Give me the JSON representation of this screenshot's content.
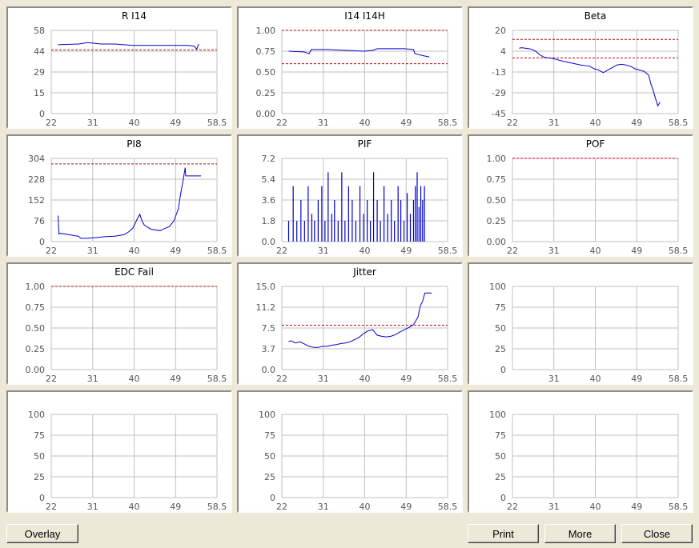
{
  "buttons": {
    "overlay": "Overlay",
    "print": "Print",
    "more": "More",
    "close": "Close"
  },
  "colors": {
    "data": "#0000cc",
    "limit": "#b01010",
    "grid": "#c0c0c0"
  },
  "chart_data": [
    {
      "type": "line",
      "title": "R I14",
      "x_ticks": [
        "22",
        "31",
        "40",
        "49",
        "58.5"
      ],
      "xlim": [
        22,
        58.5
      ],
      "y_ticks": [
        "58",
        "44",
        "29",
        "15",
        "0"
      ],
      "ylim": [
        0,
        58
      ],
      "limits": [
        44.5
      ],
      "series": [
        {
          "x": [
            23.5,
            28,
            30,
            33,
            36,
            40,
            44,
            48,
            52,
            53.5,
            54,
            54.5
          ],
          "y": [
            48,
            48.5,
            49.5,
            48.5,
            48.5,
            47.5,
            47.5,
            47.5,
            47.5,
            47,
            45,
            48.5
          ]
        }
      ]
    },
    {
      "type": "line",
      "title": "I14 I14H",
      "x_ticks": [
        "22",
        "31",
        "40",
        "49",
        "58.5"
      ],
      "xlim": [
        22,
        58.5
      ],
      "y_ticks": [
        "1.00",
        "0.75",
        "0.50",
        "0.25",
        "0.00"
      ],
      "ylim": [
        0,
        1
      ],
      "limits": [
        1.0,
        0.6
      ],
      "series": [
        {
          "x": [
            23.5,
            27,
            28,
            28.5,
            32,
            36,
            40,
            42,
            43,
            46,
            49,
            51,
            51.3,
            52,
            54.5
          ],
          "y": [
            0.75,
            0.74,
            0.72,
            0.77,
            0.77,
            0.76,
            0.75,
            0.76,
            0.78,
            0.78,
            0.78,
            0.77,
            0.72,
            0.71,
            0.68
          ]
        }
      ]
    },
    {
      "type": "line",
      "title": "Beta",
      "x_ticks": [
        "22",
        "31",
        "40",
        "49",
        "58.5"
      ],
      "xlim": [
        22,
        58.5
      ],
      "y_ticks": [
        "20",
        "4",
        "-13",
        "-29",
        "-45"
      ],
      "ylim": [
        -45,
        20
      ],
      "limits": [
        13,
        -1.5
      ],
      "series": [
        {
          "x": [
            23.5,
            24,
            25,
            26,
            27,
            28,
            29,
            31,
            33,
            35,
            37,
            39,
            40,
            41,
            42,
            43,
            44,
            45,
            46,
            47,
            48,
            49,
            50,
            51,
            52,
            52.5,
            53,
            53.5,
            54,
            54.5
          ],
          "y": [
            6,
            6.5,
            6,
            5.5,
            4,
            1,
            -1,
            -2,
            -4,
            -5.5,
            -7,
            -8,
            -10,
            -11,
            -13,
            -11,
            -9,
            -7,
            -6.5,
            -7,
            -8,
            -10,
            -11,
            -12,
            -15,
            -22,
            -27,
            -33,
            -39,
            -36
          ]
        }
      ]
    },
    {
      "type": "line",
      "title": "PI8",
      "x_ticks": [
        "22",
        "31",
        "40",
        "49",
        "58.5"
      ],
      "xlim": [
        22,
        58.5
      ],
      "y_ticks": [
        "304",
        "228",
        "152",
        "76",
        "0"
      ],
      "ylim": [
        0,
        304
      ],
      "limits": [
        284
      ],
      "series": [
        {
          "x": [
            23.5,
            23.7,
            24,
            26,
            27,
            28,
            28.5,
            30,
            32,
            34,
            36,
            38,
            39,
            40,
            41,
            41.5,
            42,
            42.5,
            44,
            46,
            47,
            48,
            49,
            50,
            50.5,
            51,
            51.5,
            51.6,
            52,
            55
          ],
          "y": [
            95,
            28,
            30,
            25,
            22,
            20,
            12,
            12,
            15,
            18,
            20,
            25,
            35,
            50,
            85,
            100,
            75,
            60,
            45,
            40,
            48,
            55,
            75,
            120,
            175,
            220,
            270,
            240,
            240,
            240
          ]
        }
      ]
    },
    {
      "type": "bar",
      "title": "PIF",
      "x_ticks": [
        "22",
        "31",
        "40",
        "49",
        "58.5"
      ],
      "xlim": [
        22,
        58.5
      ],
      "y_ticks": [
        "7.2",
        "5.4",
        "3.6",
        "1.8",
        "0.0"
      ],
      "ylim": [
        0,
        7.2
      ],
      "limits": [],
      "series": [
        {
          "x": [
            23.5,
            24.5,
            25.3,
            26.2,
            27,
            27.8,
            28.6,
            29.2,
            30,
            30.8,
            31.5,
            32.2,
            33,
            33.6,
            34.4,
            35.2,
            35.9,
            36.7,
            37.5,
            38.3,
            39.2,
            40,
            40.8,
            41.5,
            42.2,
            43,
            43.7,
            44.5,
            45.3,
            46.1,
            46.8,
            47.6,
            48.2,
            48.9,
            49.6,
            50.3,
            51,
            51.4,
            51.8,
            52.2,
            52.6,
            53,
            53.4
          ],
          "y": [
            1.8,
            4.8,
            1.8,
            3.6,
            1.8,
            4.8,
            2.4,
            1.8,
            3.6,
            4.8,
            1.8,
            6.0,
            2.4,
            3.6,
            1.8,
            6.0,
            1.8,
            4.8,
            3.6,
            1.8,
            4.8,
            2.4,
            3.6,
            1.8,
            6.0,
            3.6,
            1.8,
            4.8,
            2.4,
            3.6,
            1.8,
            4.8,
            3.6,
            1.8,
            4.2,
            2.4,
            3.6,
            4.8,
            6.0,
            3.0,
            4.8,
            3.6,
            4.8
          ]
        }
      ]
    },
    {
      "type": "line",
      "title": "POF",
      "x_ticks": [
        "22",
        "31",
        "40",
        "49",
        "58.5"
      ],
      "xlim": [
        22,
        58.5
      ],
      "y_ticks": [
        "1.00",
        "0.75",
        "0.50",
        "0.25",
        "0.00"
      ],
      "ylim": [
        0,
        1
      ],
      "limits": [
        1.0
      ],
      "series": []
    },
    {
      "type": "line",
      "title": "EDC Fail",
      "x_ticks": [
        "22",
        "31",
        "40",
        "49",
        "58.5"
      ],
      "xlim": [
        22,
        58.5
      ],
      "y_ticks": [
        "1.00",
        "0.75",
        "0.50",
        "0.25",
        "0.00"
      ],
      "ylim": [
        0,
        1
      ],
      "limits": [
        1.0
      ],
      "series": []
    },
    {
      "type": "line",
      "title": "Jitter",
      "x_ticks": [
        "22",
        "31",
        "40",
        "49",
        "58.5"
      ],
      "xlim": [
        22,
        58.5
      ],
      "y_ticks": [
        "15.0",
        "11.2",
        "7.5",
        "3.7",
        "0.0"
      ],
      "ylim": [
        0,
        15
      ],
      "limits": [
        8.0
      ],
      "series": [
        {
          "x": [
            23.5,
            24,
            25,
            26,
            27,
            28,
            29,
            30,
            31,
            32,
            33,
            34,
            35,
            36,
            37,
            38,
            39,
            40,
            41,
            42,
            43,
            44,
            45,
            46,
            47,
            48,
            49,
            50,
            51,
            52,
            52.5,
            53,
            53.5,
            54,
            55
          ],
          "y": [
            5.0,
            5.2,
            4.8,
            5.0,
            4.6,
            4.2,
            4.0,
            4.0,
            4.2,
            4.2,
            4.4,
            4.5,
            4.7,
            4.8,
            5.0,
            5.4,
            5.8,
            6.5,
            7.0,
            7.2,
            6.2,
            6.0,
            5.9,
            6.0,
            6.3,
            6.8,
            7.2,
            7.6,
            8.1,
            9.5,
            11.5,
            12.3,
            13.8,
            13.8,
            13.8
          ]
        }
      ]
    },
    {
      "type": "line",
      "title": "",
      "x_ticks": [
        "",
        "31",
        "40",
        "49",
        "58.5"
      ],
      "xlim": [
        22,
        58.5
      ],
      "y_ticks": [
        "100",
        "75",
        "50",
        "25",
        "0"
      ],
      "ylim": [
        0,
        100
      ],
      "limits": [],
      "series": []
    },
    {
      "type": "line",
      "title": "",
      "x_ticks": [
        "22",
        "31",
        "40",
        "49",
        "58.5"
      ],
      "xlim": [
        22,
        58.5
      ],
      "y_ticks": [
        "100",
        "75",
        "50",
        "25",
        "0"
      ],
      "ylim": [
        0,
        100
      ],
      "limits": [],
      "series": []
    },
    {
      "type": "line",
      "title": "",
      "x_ticks": [
        "22",
        "31",
        "40",
        "49",
        "58.5"
      ],
      "xlim": [
        22,
        58.5
      ],
      "y_ticks": [
        "100",
        "75",
        "50",
        "25",
        "0"
      ],
      "ylim": [
        0,
        100
      ],
      "limits": [],
      "series": []
    },
    {
      "type": "line",
      "title": "",
      "x_ticks": [
        "22",
        "31",
        "40",
        "49",
        "58.5"
      ],
      "xlim": [
        22,
        58.5
      ],
      "y_ticks": [
        "100",
        "75",
        "50",
        "25",
        "0"
      ],
      "ylim": [
        0,
        100
      ],
      "limits": [],
      "series": []
    }
  ]
}
